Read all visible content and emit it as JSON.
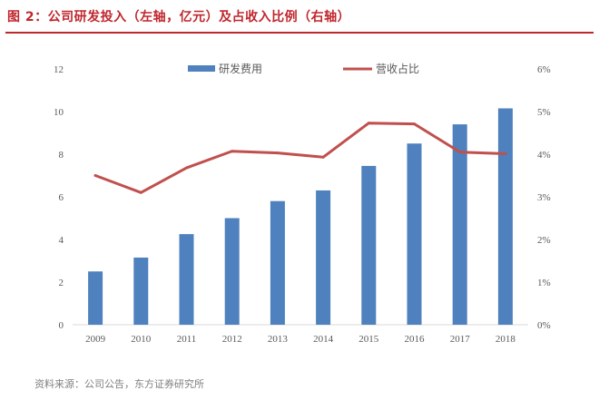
{
  "figure": {
    "title": "图 2：公司研发投入（左轴，亿元）及占收入比例（右轴）",
    "source": "资料来源：公司公告，东方证券研究所"
  },
  "colors": {
    "title_red": "#c0262d",
    "bar_blue": "#4e81bd",
    "line_red": "#c0504d"
  },
  "chart_data": {
    "type": "bar",
    "categories": [
      "2009",
      "2010",
      "2011",
      "2012",
      "2013",
      "2014",
      "2015",
      "2016",
      "2017",
      "2018"
    ],
    "series": [
      {
        "name": "研发费用",
        "type": "bar",
        "axis": "left",
        "values": [
          2.5,
          3.15,
          4.25,
          5.0,
          5.8,
          6.3,
          7.45,
          8.5,
          9.4,
          10.15
        ]
      },
      {
        "name": "营收占比",
        "type": "line",
        "axis": "right",
        "values": [
          3.5,
          3.1,
          3.68,
          4.07,
          4.03,
          3.93,
          4.73,
          4.71,
          4.05,
          4.01
        ]
      }
    ],
    "left_axis": {
      "min": 0,
      "max": 12,
      "ticks": [
        "0",
        "2",
        "4",
        "6",
        "8",
        "10",
        "12"
      ]
    },
    "right_axis": {
      "min": 0,
      "max": 6,
      "ticks": [
        "0%",
        "1%",
        "2%",
        "3%",
        "4%",
        "5%",
        "6%"
      ]
    },
    "legend_position": "top",
    "grid": false
  }
}
